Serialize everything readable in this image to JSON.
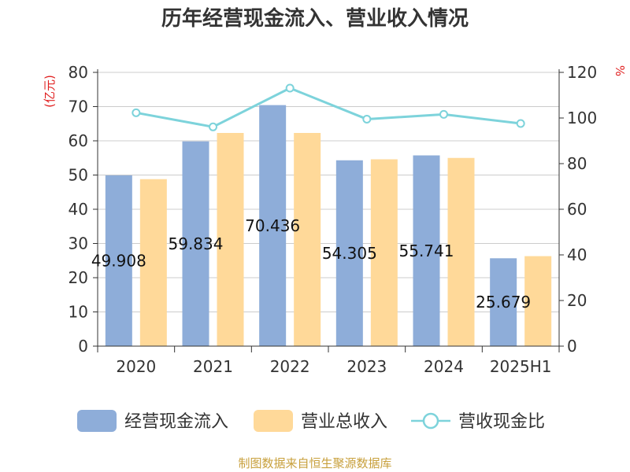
{
  "chart_data": {
    "type": "bar",
    "title": "历年经营现金流入、营业收入情况",
    "categories": [
      "2020",
      "2021",
      "2022",
      "2023",
      "2024",
      "2025H1"
    ],
    "y_left": {
      "unit": "(亿元)",
      "ticks": [
        "0",
        "10",
        "20",
        "30",
        "40",
        "50",
        "60",
        "70",
        "80"
      ],
      "ylim": [
        0,
        80
      ]
    },
    "y_right": {
      "unit": "%",
      "ticks": [
        "0",
        "20",
        "40",
        "60",
        "80",
        "100",
        "120"
      ],
      "ylim": [
        0,
        120
      ]
    },
    "series": [
      {
        "name": "经营现金流入",
        "type": "bar",
        "axis": "left",
        "color": "#8eadd9",
        "values": [
          49.908,
          59.834,
          70.436,
          54.305,
          55.741,
          25.679
        ],
        "labels": [
          "49.908",
          "59.834",
          "70.436",
          "54.305",
          "55.741",
          "25.679"
        ]
      },
      {
        "name": "营业总收入",
        "type": "bar",
        "axis": "left",
        "color": "#ffd999",
        "values": [
          48.8,
          62.3,
          62.3,
          54.6,
          55.0,
          26.3
        ]
      },
      {
        "name": "营收现金比",
        "type": "line",
        "axis": "right",
        "color": "#7dd3db",
        "values": [
          102.3,
          96.1,
          113.1,
          99.5,
          101.6,
          97.6
        ]
      }
    ],
    "grid": true,
    "legend_position": "bottom",
    "source_note": "制图数据来自恒生聚源数据库",
    "colors": {
      "unit_label": "#e02020",
      "source_note": "#c8a03c",
      "axis": "#333333",
      "grid": "#cccccc"
    }
  }
}
